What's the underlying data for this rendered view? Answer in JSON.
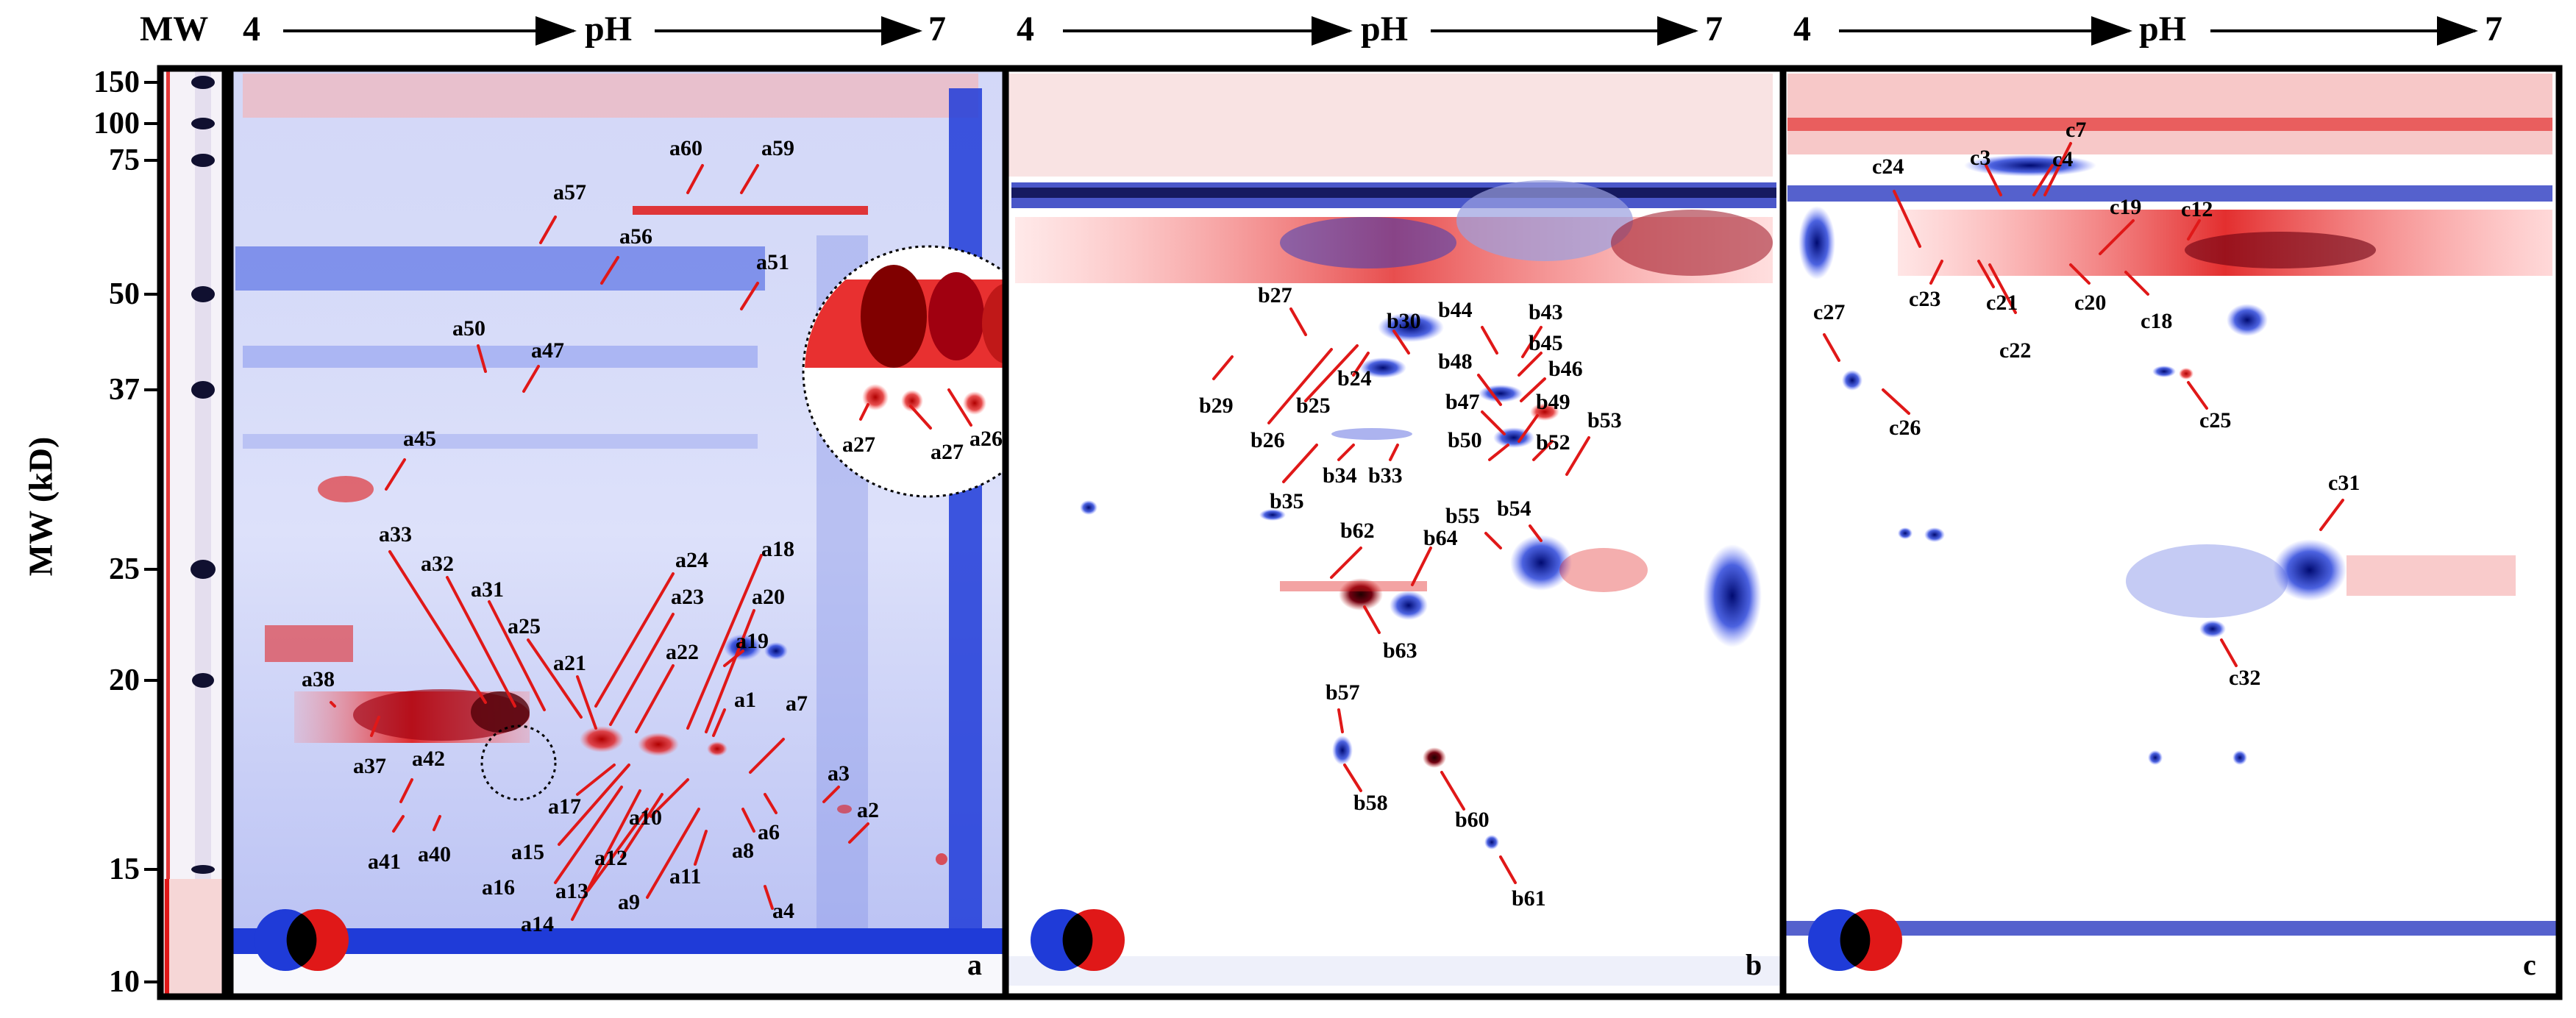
{
  "figure": {
    "mw_header": "MW",
    "mw_axis_label": "MW (kD)",
    "mw_ticks": [
      "150",
      "100",
      "75",
      "50",
      "37",
      "25",
      "20",
      "15",
      "10"
    ],
    "ph_axis": {
      "start": "4",
      "label": "pH",
      "end": "7"
    },
    "colors": {
      "blue": "#1f3bd8",
      "red": "#e01818",
      "frame": "#000000"
    },
    "legend_icon": "blue-red-overlap-venn-icon"
  },
  "panels": [
    {
      "id": "a",
      "letter": "a",
      "spot_labels": [
        "a60",
        "a59",
        "a57",
        "a56",
        "a51",
        "a50",
        "a47",
        "a45",
        "a33",
        "a32",
        "a31",
        "a25",
        "a21",
        "a24",
        "a23",
        "a22",
        "a18",
        "a20",
        "a19",
        "a38",
        "a37",
        "a42",
        "a41",
        "a40",
        "a1",
        "a7",
        "a17",
        "a15",
        "a16",
        "a14",
        "a13",
        "a12",
        "a10",
        "a9",
        "a11",
        "a8",
        "a6",
        "a4",
        "a3",
        "a2",
        "a27",
        "a27",
        "a26"
      ]
    },
    {
      "id": "b",
      "letter": "b",
      "spot_labels": [
        "b27",
        "b29",
        "b30",
        "b44",
        "b43",
        "b45",
        "b46",
        "b48",
        "b47",
        "b49",
        "b24",
        "b25",
        "b26",
        "b35",
        "b34",
        "b33",
        "b50",
        "b52",
        "b53",
        "b55",
        "b54",
        "b62",
        "b64",
        "b63",
        "b57",
        "b58",
        "b60",
        "b61"
      ]
    },
    {
      "id": "c",
      "letter": "c",
      "spot_labels": [
        "c24",
        "c3",
        "c4",
        "c7",
        "c19",
        "c12",
        "c23",
        "c21",
        "c22",
        "c20",
        "c18",
        "c27",
        "c26",
        "c25",
        "c31",
        "c32"
      ]
    }
  ]
}
